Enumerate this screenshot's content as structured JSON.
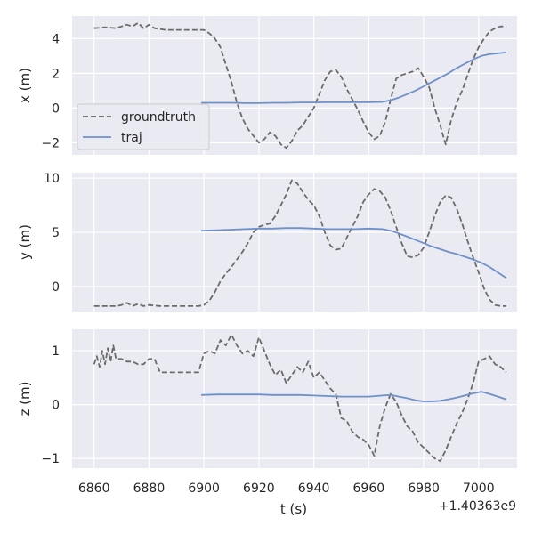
{
  "chart_data": {
    "type": "line",
    "shared_x_axis": {
      "xlabel": "t (s)",
      "offset_label": "+1.40363e9",
      "xlim": [
        6852,
        7014
      ],
      "xticks": [
        6860,
        6880,
        6900,
        6920,
        6940,
        6960,
        6980,
        7000
      ]
    },
    "legend": {
      "location": "lower-left of top panel",
      "entries": [
        {
          "name": "groundtruth",
          "style": "dashed",
          "color": "#6b6b6b"
        },
        {
          "name": "traj",
          "style": "solid",
          "color": "#7090c8"
        }
      ]
    },
    "grid": true,
    "background": "#eaeaf2",
    "panels": [
      {
        "ylabel": "x (m)",
        "ylim": [
          -2.7,
          5.3
        ],
        "yticks": [
          -2,
          0,
          2,
          4
        ],
        "series": [
          {
            "name": "groundtruth",
            "x": [
              6860,
              6864,
              6868,
              6870,
              6872,
              6874,
              6876,
              6878,
              6880,
              6882,
              6886,
              6890,
              6894,
              6898,
              6900,
              6902,
              6904,
              6906,
              6908,
              6910,
              6912,
              6914,
              6916,
              6918,
              6920,
              6922,
              6924,
              6926,
              6928,
              6930,
              6932,
              6934,
              6936,
              6938,
              6940,
              6942,
              6944,
              6946,
              6948,
              6950,
              6952,
              6954,
              6956,
              6958,
              6960,
              6962,
              6964,
              6966,
              6968,
              6970,
              6972,
              6974,
              6976,
              6978,
              6980,
              6982,
              6984,
              6986,
              6988,
              6990,
              6992,
              6994,
              6996,
              6998,
              7000,
              7002,
              7004,
              7006,
              7008,
              7010
            ],
            "y": [
              4.6,
              4.65,
              4.6,
              4.7,
              4.8,
              4.7,
              4.9,
              4.6,
              4.8,
              4.6,
              4.5,
              4.5,
              4.5,
              4.5,
              4.5,
              4.3,
              4.0,
              3.5,
              2.5,
              1.5,
              0.3,
              -0.6,
              -1.2,
              -1.6,
              -2.0,
              -1.8,
              -1.4,
              -1.6,
              -2.1,
              -2.3,
              -1.9,
              -1.3,
              -1.0,
              -0.5,
              0.0,
              0.8,
              1.6,
              2.1,
              2.2,
              1.8,
              1.1,
              0.5,
              -0.1,
              -0.8,
              -1.4,
              -1.8,
              -1.6,
              -0.8,
              0.5,
              1.7,
              1.9,
              2.0,
              2.1,
              2.3,
              1.8,
              1.2,
              0.0,
              -1.0,
              -2.1,
              -0.7,
              0.3,
              1.0,
              1.9,
              2.8,
              3.5,
              4.0,
              4.4,
              4.6,
              4.7,
              4.7
            ]
          },
          {
            "name": "traj",
            "x": [
              6899,
              6905,
              6910,
              6915,
              6920,
              6925,
              6930,
              6935,
              6940,
              6945,
              6950,
              6955,
              6960,
              6965,
              6968,
              6971,
              6974,
              6977,
              6980,
              6983,
              6986,
              6989,
              6992,
              6995,
              6998,
              7001,
              7004,
              7007,
              7010
            ],
            "y": [
              0.3,
              0.3,
              0.3,
              0.28,
              0.28,
              0.3,
              0.3,
              0.32,
              0.32,
              0.33,
              0.33,
              0.33,
              0.33,
              0.35,
              0.45,
              0.6,
              0.8,
              1.0,
              1.25,
              1.5,
              1.75,
              2.0,
              2.3,
              2.55,
              2.8,
              3.0,
              3.1,
              3.15,
              3.2
            ]
          }
        ]
      },
      {
        "ylabel": "y (m)",
        "ylim": [
          -2.3,
          10.5
        ],
        "yticks": [
          0,
          5,
          10
        ],
        "series": [
          {
            "name": "groundtruth",
            "x": [
              6860,
              6864,
              6868,
              6870,
              6872,
              6874,
              6876,
              6878,
              6880,
              6884,
              6888,
              6892,
              6896,
              6898,
              6900,
              6902,
              6904,
              6906,
              6908,
              6910,
              6912,
              6914,
              6916,
              6918,
              6920,
              6922,
              6924,
              6926,
              6928,
              6930,
              6932,
              6934,
              6936,
              6938,
              6940,
              6942,
              6944,
              6946,
              6948,
              6950,
              6952,
              6954,
              6956,
              6958,
              6960,
              6962,
              6964,
              6966,
              6968,
              6970,
              6972,
              6974,
              6976,
              6978,
              6980,
              6982,
              6984,
              6986,
              6988,
              6990,
              6992,
              6994,
              6996,
              6998,
              7000,
              7002,
              7004,
              7006,
              7008,
              7010
            ],
            "y": [
              -1.8,
              -1.8,
              -1.8,
              -1.7,
              -1.5,
              -1.8,
              -1.6,
              -1.8,
              -1.7,
              -1.8,
              -1.8,
              -1.8,
              -1.8,
              -1.8,
              -1.7,
              -1.3,
              -0.5,
              0.5,
              1.2,
              1.8,
              2.5,
              3.2,
              4.0,
              5.0,
              5.5,
              5.7,
              5.8,
              6.5,
              7.5,
              8.5,
              9.8,
              9.5,
              8.7,
              8.0,
              7.5,
              6.5,
              5.0,
              3.8,
              3.4,
              3.5,
              4.5,
              5.5,
              6.5,
              7.8,
              8.5,
              9.0,
              8.8,
              8.2,
              7.0,
              5.5,
              4.0,
              2.8,
              2.7,
              2.9,
              3.6,
              5.0,
              6.5,
              7.8,
              8.4,
              8.2,
              7.2,
              5.8,
              4.2,
              2.7,
              1.3,
              -0.2,
              -1.2,
              -1.7,
              -1.8,
              -1.8
            ]
          },
          {
            "name": "traj",
            "x": [
              6899,
              6905,
              6910,
              6915,
              6920,
              6925,
              6930,
              6935,
              6940,
              6945,
              6950,
              6955,
              6960,
              6965,
              6968,
              6971,
              6974,
              6977,
              6980,
              6983,
              6986,
              6989,
              6992,
              6995,
              6998,
              7001,
              7004,
              7007,
              7010
            ],
            "y": [
              5.15,
              5.2,
              5.25,
              5.3,
              5.35,
              5.35,
              5.4,
              5.4,
              5.35,
              5.3,
              5.3,
              5.3,
              5.35,
              5.3,
              5.15,
              4.9,
              4.6,
              4.3,
              4.0,
              3.7,
              3.45,
              3.2,
              3.0,
              2.75,
              2.5,
              2.2,
              1.8,
              1.3,
              0.8
            ]
          }
        ]
      },
      {
        "ylabel": "z (m)",
        "ylim": [
          -1.18,
          1.4
        ],
        "yticks": [
          -1,
          0,
          1
        ],
        "series": [
          {
            "name": "groundtruth",
            "x": [
              6860,
              6861,
              6862,
              6863,
              6864,
              6865,
              6866,
              6867,
              6868,
              6870,
              6872,
              6874,
              6876,
              6878,
              6880,
              6882,
              6884,
              6888,
              6892,
              6896,
              6898,
              6900,
              6902,
              6904,
              6906,
              6908,
              6910,
              6912,
              6914,
              6916,
              6918,
              6920,
              6922,
              6924,
              6926,
              6928,
              6930,
              6932,
              6934,
              6936,
              6938,
              6940,
              6942,
              6944,
              6946,
              6948,
              6950,
              6952,
              6954,
              6956,
              6958,
              6960,
              6962,
              6964,
              6966,
              6968,
              6970,
              6972,
              6974,
              6976,
              6978,
              6980,
              6982,
              6984,
              6986,
              6988,
              6990,
              6992,
              6994,
              6996,
              6998,
              7000,
              7002,
              7004,
              7006,
              7008,
              7010
            ],
            "y": [
              0.75,
              0.9,
              0.7,
              1.0,
              0.75,
              1.05,
              0.8,
              1.1,
              0.85,
              0.85,
              0.8,
              0.8,
              0.75,
              0.75,
              0.85,
              0.85,
              0.6,
              0.6,
              0.6,
              0.6,
              0.6,
              0.95,
              1.0,
              0.95,
              1.2,
              1.1,
              1.3,
              1.1,
              0.95,
              1.0,
              0.9,
              1.25,
              1.0,
              0.75,
              0.55,
              0.65,
              0.4,
              0.55,
              0.7,
              0.6,
              0.8,
              0.5,
              0.6,
              0.45,
              0.3,
              0.2,
              -0.25,
              -0.3,
              -0.5,
              -0.6,
              -0.65,
              -0.75,
              -0.95,
              -0.4,
              -0.05,
              0.2,
              0.05,
              -0.2,
              -0.4,
              -0.5,
              -0.7,
              -0.8,
              -0.9,
              -1.0,
              -1.05,
              -0.85,
              -0.6,
              -0.35,
              -0.15,
              0.1,
              0.4,
              0.8,
              0.85,
              0.9,
              0.75,
              0.7,
              0.6
            ]
          },
          {
            "name": "traj",
            "x": [
              6899,
              6905,
              6910,
              6915,
              6920,
              6925,
              6930,
              6935,
              6940,
              6945,
              6950,
              6955,
              6960,
              6965,
              6968,
              6971,
              6974,
              6977,
              6980,
              6983,
              6986,
              6989,
              6992,
              6995,
              6998,
              7001,
              7004,
              7007,
              7010
            ],
            "y": [
              0.18,
              0.19,
              0.19,
              0.19,
              0.19,
              0.18,
              0.18,
              0.18,
              0.17,
              0.16,
              0.15,
              0.15,
              0.15,
              0.17,
              0.18,
              0.15,
              0.12,
              0.08,
              0.06,
              0.06,
              0.07,
              0.1,
              0.13,
              0.17,
              0.21,
              0.24,
              0.2,
              0.15,
              0.1
            ]
          }
        ]
      }
    ]
  }
}
